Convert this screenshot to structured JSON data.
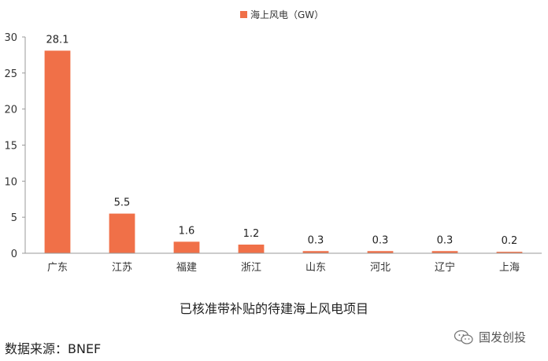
{
  "chart_data": {
    "type": "bar",
    "legend": "海上风电（GW）",
    "legend_position": "top-center",
    "categories": [
      "广东",
      "江苏",
      "福建",
      "浙江",
      "山东",
      "河北",
      "辽宁",
      "上海"
    ],
    "values": [
      28.1,
      5.5,
      1.6,
      1.2,
      0.3,
      0.3,
      0.3,
      0.2
    ],
    "data_labels": [
      "28.1",
      "5.5",
      "1.6",
      "1.2",
      "0.3",
      "0.3",
      "0.3",
      "0.2"
    ],
    "yticks": [
      "0",
      "5",
      "10",
      "15",
      "20",
      "25",
      "30"
    ],
    "ylim": [
      0,
      30
    ],
    "grid": false,
    "bar_color": "#f07048"
  },
  "caption": "已核准带补贴的待建海上风电项目",
  "source": "数据来源：BNEF",
  "watermark": {
    "icon": "wechat-icon",
    "text": "国发创投"
  }
}
